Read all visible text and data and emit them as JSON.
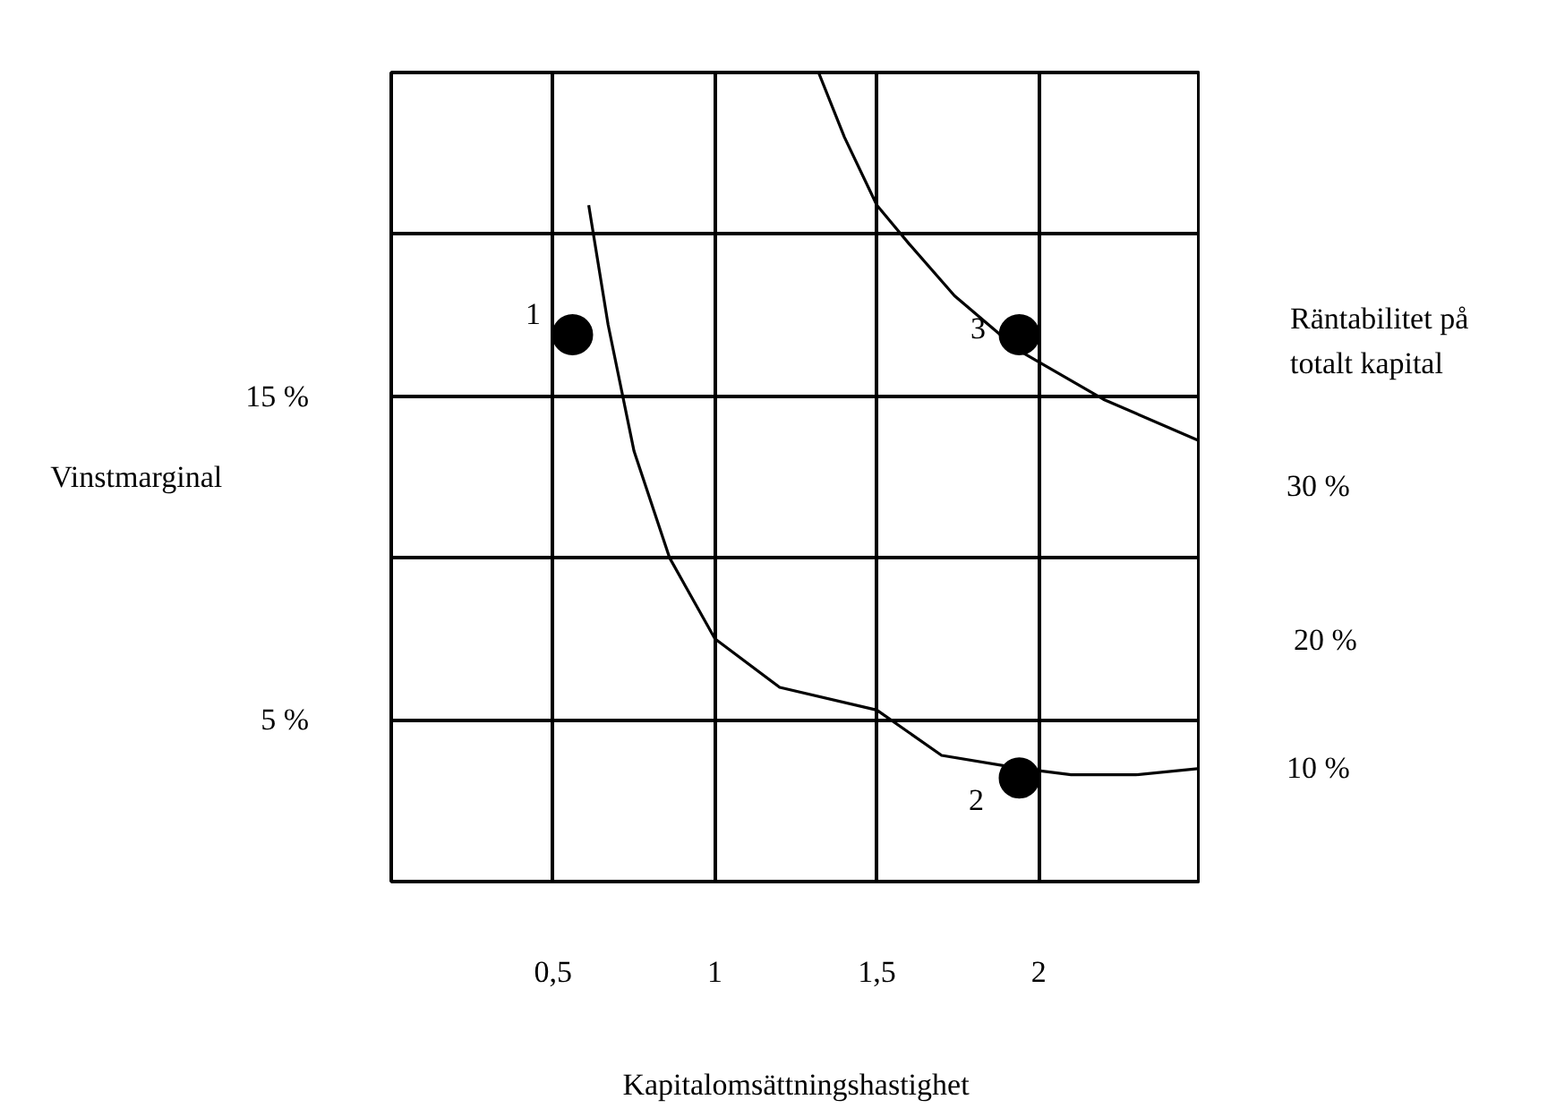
{
  "chart_data": {
    "type": "scatter",
    "xlabel": "Kapitalomsättningshastighet",
    "ylabel": "Vinstmarginal",
    "xlim": [
      0,
      2.5
    ],
    "ylim": [
      0,
      25
    ],
    "xticks": [
      {
        "value": 0,
        "label": null
      },
      {
        "value": 0.5,
        "label": "0,5"
      },
      1,
      {
        "value": 1.5,
        "label": "1,5"
      },
      2,
      {
        "value": 2.5,
        "label": null
      }
    ],
    "yticks": [
      {
        "value": 0,
        "label": null
      },
      {
        "value": 5,
        "label": "5 %"
      },
      {
        "value": 10,
        "label": null
      },
      {
        "value": 15,
        "label": "15 %"
      },
      {
        "value": 20,
        "label": null
      },
      {
        "value": 25,
        "label": null
      }
    ],
    "grid": true,
    "series": [
      {
        "name": "1",
        "marker": "circle",
        "color": "#000000",
        "x": [
          0.56
        ],
        "values": [
          16.9
        ]
      },
      {
        "name": "2",
        "marker": "circle",
        "color": "#000000",
        "x": [
          1.94
        ],
        "values": [
          3.2
        ]
      },
      {
        "name": "3",
        "marker": "circle",
        "color": "#000000",
        "x": [
          1.94
        ],
        "values": [
          16.9
        ]
      },
      {
        "type": "line",
        "name": "10 %",
        "color": "#000000",
        "x": [
          0.61,
          0.67,
          0.75,
          0.86,
          1.0,
          1.2,
          1.5,
          1.7,
          1.94,
          2.1,
          2.3,
          2.5
        ],
        "values": [
          20.9,
          17.2,
          13.3,
          10.0,
          7.5,
          6.0,
          5.3,
          3.9,
          3.5,
          3.3,
          3.3,
          3.5
        ]
      },
      {
        "type": "line",
        "name": "30 %",
        "color": "#000000",
        "x": [
          1.32,
          1.4,
          1.5,
          1.6,
          1.74,
          1.94,
          2.2,
          2.5
        ],
        "values": [
          25,
          23.0,
          20.9,
          19.7,
          18.1,
          16.4,
          14.9,
          13.6
        ]
      }
    ],
    "annotations": [
      "20 %",
      "Räntabilitet på\ntotalt kapital"
    ]
  }
}
